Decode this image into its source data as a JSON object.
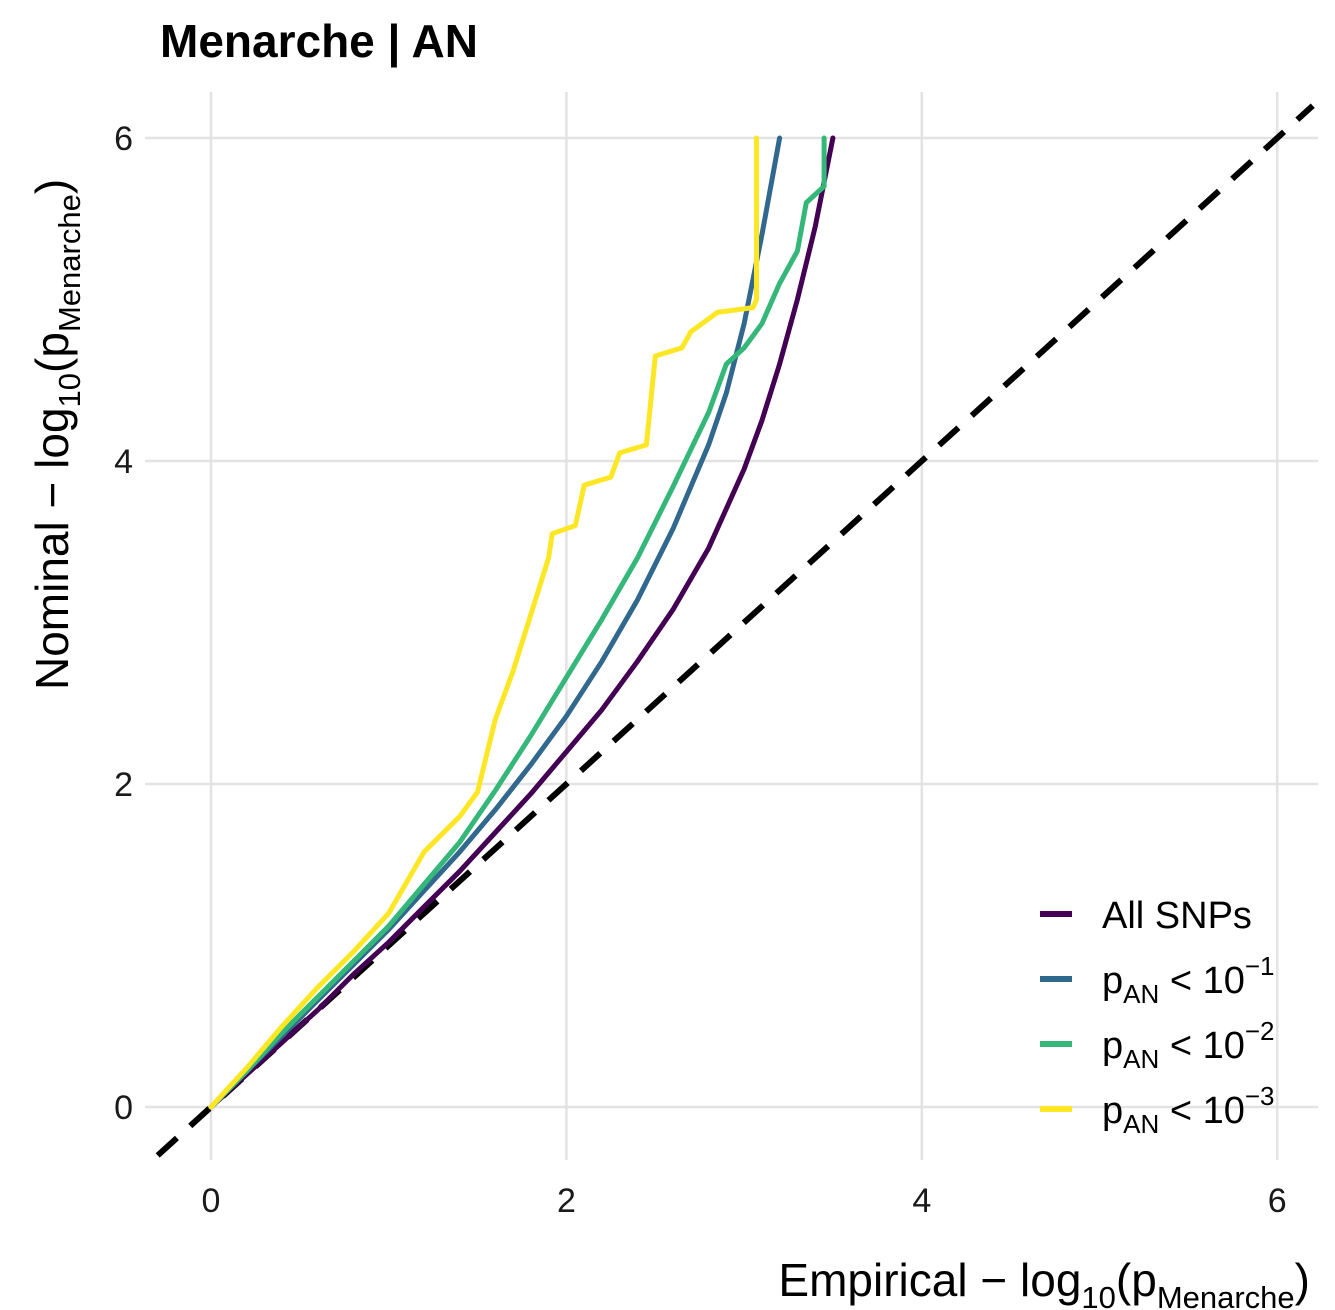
{
  "chart_data": {
    "type": "line",
    "title": "Menarche | AN",
    "xlabel": {
      "prefix": "Empirical",
      "main": "log",
      "base": "10",
      "var": "p",
      "sub": "Menarche"
    },
    "ylabel": {
      "prefix": "Nominal",
      "main": "log",
      "base": "10",
      "var": "p",
      "sub": "Menarche"
    },
    "xlim": [
      -0.3,
      6.2
    ],
    "ylim": [
      -0.3,
      6.2
    ],
    "x_ticks": [
      "0",
      "2",
      "4",
      "6"
    ],
    "y_ticks": [
      "0",
      "2",
      "4",
      "6"
    ],
    "grid": true,
    "legend_position": "bottom-right",
    "reference_line": {
      "style": "dashed",
      "color": "#000000",
      "slope": 1,
      "intercept": 0
    },
    "series": [
      {
        "name": "All SNPs",
        "legend": {
          "text": "All SNPs"
        },
        "color": "#440154",
        "x": [
          0,
          0.2,
          0.4,
          0.6,
          0.8,
          1.0,
          1.2,
          1.4,
          1.6,
          1.8,
          2.0,
          2.2,
          2.4,
          2.6,
          2.8,
          3.0,
          3.1,
          3.2,
          3.3,
          3.4,
          3.5
        ],
        "y": [
          0,
          0.2,
          0.4,
          0.6,
          0.82,
          1.02,
          1.24,
          1.46,
          1.7,
          1.94,
          2.2,
          2.46,
          2.76,
          3.08,
          3.46,
          3.95,
          4.25,
          4.6,
          5.0,
          5.45,
          6.0
        ]
      },
      {
        "name": "pAN < 10^-1",
        "legend": {
          "var": "p",
          "sub": "AN",
          "op": " < 10",
          "sup": "−1"
        },
        "color": "#31688e",
        "x": [
          0,
          0.2,
          0.4,
          0.6,
          0.8,
          1.0,
          1.2,
          1.4,
          1.6,
          1.8,
          2.0,
          2.2,
          2.4,
          2.6,
          2.8,
          2.9,
          3.0,
          3.1,
          3.2
        ],
        "y": [
          0,
          0.22,
          0.44,
          0.66,
          0.88,
          1.1,
          1.34,
          1.58,
          1.84,
          2.12,
          2.42,
          2.76,
          3.14,
          3.58,
          4.1,
          4.42,
          4.85,
          5.4,
          6.0
        ]
      },
      {
        "name": "pAN < 10^-2",
        "legend": {
          "var": "p",
          "sub": "AN",
          "op": " < 10",
          "sup": "−2"
        },
        "color": "#35b779",
        "x": [
          0,
          0.2,
          0.4,
          0.6,
          0.8,
          1.0,
          1.2,
          1.4,
          1.6,
          1.8,
          2.0,
          2.2,
          2.4,
          2.6,
          2.8,
          2.9,
          3.0,
          3.1,
          3.2,
          3.3,
          3.35,
          3.45,
          3.45
        ],
        "y": [
          0,
          0.22,
          0.46,
          0.68,
          0.9,
          1.12,
          1.38,
          1.64,
          1.96,
          2.3,
          2.66,
          3.02,
          3.4,
          3.84,
          4.3,
          4.6,
          4.7,
          4.85,
          5.1,
          5.3,
          5.6,
          5.7,
          6.0
        ]
      },
      {
        "name": "pAN < 10^-3",
        "legend": {
          "var": "p",
          "sub": "AN",
          "op": " < 10",
          "sup": "−3"
        },
        "color": "#fde725",
        "x": [
          0,
          0.2,
          0.4,
          0.6,
          0.8,
          1.0,
          1.2,
          1.4,
          1.5,
          1.6,
          1.7,
          1.8,
          1.9,
          1.92,
          2.05,
          2.1,
          2.25,
          2.3,
          2.45,
          2.5,
          2.65,
          2.7,
          2.8,
          2.85,
          3.05,
          3.07,
          3.07
        ],
        "y": [
          0,
          0.24,
          0.5,
          0.74,
          0.96,
          1.2,
          1.58,
          1.8,
          1.95,
          2.4,
          2.7,
          3.05,
          3.4,
          3.55,
          3.6,
          3.85,
          3.9,
          4.05,
          4.1,
          4.65,
          4.7,
          4.8,
          4.88,
          4.92,
          4.95,
          5.0,
          6.0
        ]
      }
    ]
  }
}
